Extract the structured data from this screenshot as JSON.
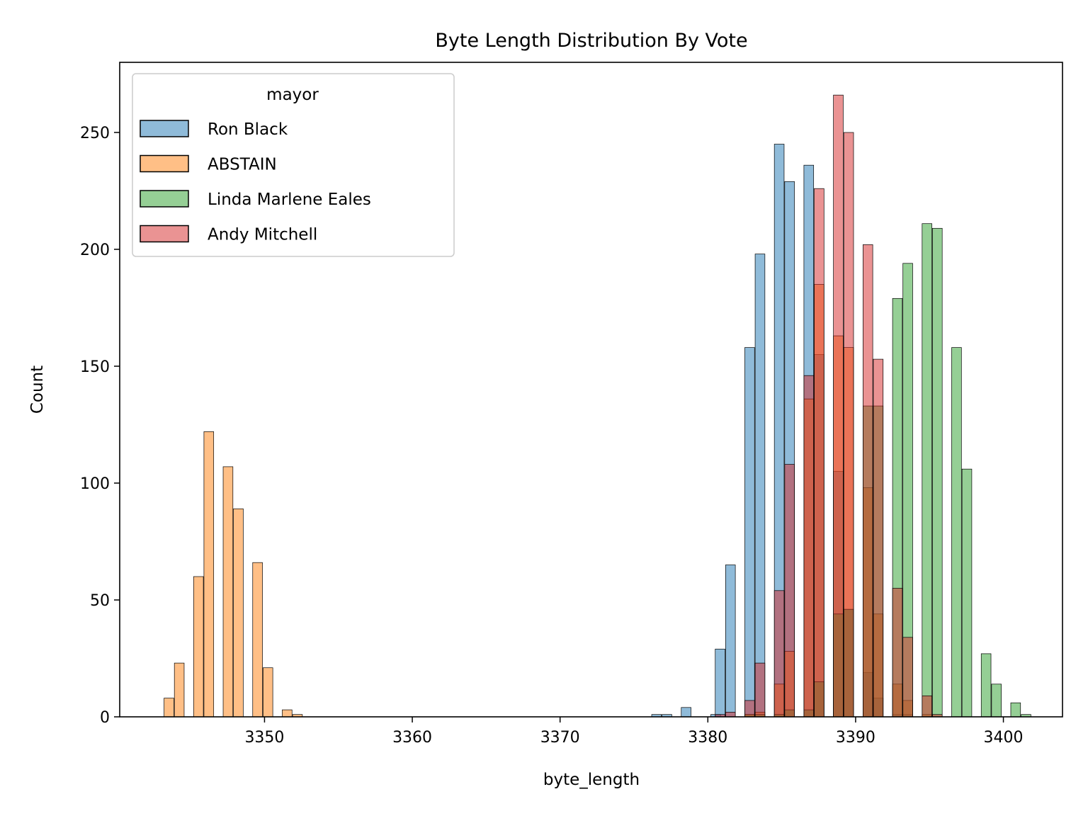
{
  "chart_data": {
    "type": "bar",
    "subtype": "histogram-overlay",
    "title": "Byte Length Distribution By Vote",
    "xlabel": "byte_length",
    "ylabel": "Count",
    "xlim": [
      3340.2,
      3404.0
    ],
    "ylim": [
      0,
      280
    ],
    "bin_width": 0.66,
    "x_ticks": [
      3350,
      3360,
      3370,
      3380,
      3390,
      3400
    ],
    "y_ticks": [
      0,
      50,
      100,
      150,
      200,
      250
    ],
    "legend": {
      "title": "mayor",
      "position": "top-left"
    },
    "series": [
      {
        "name": "Ron Black",
        "color": "#1f77b4",
        "bins": [
          {
            "x": 3376.2,
            "y": 1
          },
          {
            "x": 3376.9,
            "y": 1
          },
          {
            "x": 3378.2,
            "y": 4
          },
          {
            "x": 3380.2,
            "y": 1
          },
          {
            "x": 3380.5,
            "y": 29
          },
          {
            "x": 3381.2,
            "y": 65
          },
          {
            "x": 3382.5,
            "y": 158
          },
          {
            "x": 3383.2,
            "y": 198
          },
          {
            "x": 3384.5,
            "y": 245
          },
          {
            "x": 3385.2,
            "y": 229
          },
          {
            "x": 3386.5,
            "y": 236
          },
          {
            "x": 3387.2,
            "y": 155
          },
          {
            "x": 3388.5,
            "y": 105
          },
          {
            "x": 3389.2,
            "y": 46
          },
          {
            "x": 3390.5,
            "y": 19
          },
          {
            "x": 3391.2,
            "y": 8
          },
          {
            "x": 3392.5,
            "y": 1
          },
          {
            "x": 3393.2,
            "y": 1
          }
        ]
      },
      {
        "name": "ABSTAIN",
        "color": "#ff7f0e",
        "bins": [
          {
            "x": 3343.2,
            "y": 8
          },
          {
            "x": 3343.9,
            "y": 23
          },
          {
            "x": 3345.2,
            "y": 60
          },
          {
            "x": 3345.9,
            "y": 122
          },
          {
            "x": 3347.2,
            "y": 107
          },
          {
            "x": 3347.9,
            "y": 89
          },
          {
            "x": 3349.2,
            "y": 66
          },
          {
            "x": 3349.9,
            "y": 21
          },
          {
            "x": 3351.2,
            "y": 3
          },
          {
            "x": 3351.9,
            "y": 1
          },
          {
            "x": 3382.5,
            "y": 1
          },
          {
            "x": 3383.2,
            "y": 2
          },
          {
            "x": 3384.5,
            "y": 14
          },
          {
            "x": 3385.2,
            "y": 28
          },
          {
            "x": 3386.5,
            "y": 136
          },
          {
            "x": 3387.2,
            "y": 185
          },
          {
            "x": 3388.5,
            "y": 163
          },
          {
            "x": 3389.2,
            "y": 158
          },
          {
            "x": 3390.5,
            "y": 98
          },
          {
            "x": 3391.2,
            "y": 44
          },
          {
            "x": 3392.5,
            "y": 14
          },
          {
            "x": 3393.2,
            "y": 7
          },
          {
            "x": 3394.5,
            "y": 1
          }
        ]
      },
      {
        "name": "Linda Marlene Eales",
        "color": "#2ca02c",
        "bins": [
          {
            "x": 3382.5,
            "y": 1
          },
          {
            "x": 3383.2,
            "y": 1
          },
          {
            "x": 3384.5,
            "y": 1
          },
          {
            "x": 3385.2,
            "y": 3
          },
          {
            "x": 3386.5,
            "y": 3
          },
          {
            "x": 3387.2,
            "y": 15
          },
          {
            "x": 3388.5,
            "y": 44
          },
          {
            "x": 3389.2,
            "y": 46
          },
          {
            "x": 3390.5,
            "y": 133
          },
          {
            "x": 3391.2,
            "y": 133
          },
          {
            "x": 3392.5,
            "y": 179
          },
          {
            "x": 3393.2,
            "y": 194
          },
          {
            "x": 3394.5,
            "y": 211
          },
          {
            "x": 3395.2,
            "y": 209
          },
          {
            "x": 3396.5,
            "y": 158
          },
          {
            "x": 3397.2,
            "y": 106
          },
          {
            "x": 3398.5,
            "y": 27
          },
          {
            "x": 3399.2,
            "y": 14
          },
          {
            "x": 3400.5,
            "y": 6
          },
          {
            "x": 3401.2,
            "y": 1
          }
        ]
      },
      {
        "name": "Andy Mitchell",
        "color": "#d62728",
        "bins": [
          {
            "x": 3380.5,
            "y": 1
          },
          {
            "x": 3381.2,
            "y": 2
          },
          {
            "x": 3382.5,
            "y": 7
          },
          {
            "x": 3383.2,
            "y": 23
          },
          {
            "x": 3384.5,
            "y": 54
          },
          {
            "x": 3385.2,
            "y": 108
          },
          {
            "x": 3386.5,
            "y": 146
          },
          {
            "x": 3387.2,
            "y": 226
          },
          {
            "x": 3388.5,
            "y": 266
          },
          {
            "x": 3389.2,
            "y": 250
          },
          {
            "x": 3390.5,
            "y": 202
          },
          {
            "x": 3391.2,
            "y": 153
          },
          {
            "x": 3392.5,
            "y": 55
          },
          {
            "x": 3393.2,
            "y": 34
          },
          {
            "x": 3394.5,
            "y": 9
          },
          {
            "x": 3395.2,
            "y": 1
          }
        ]
      }
    ]
  }
}
